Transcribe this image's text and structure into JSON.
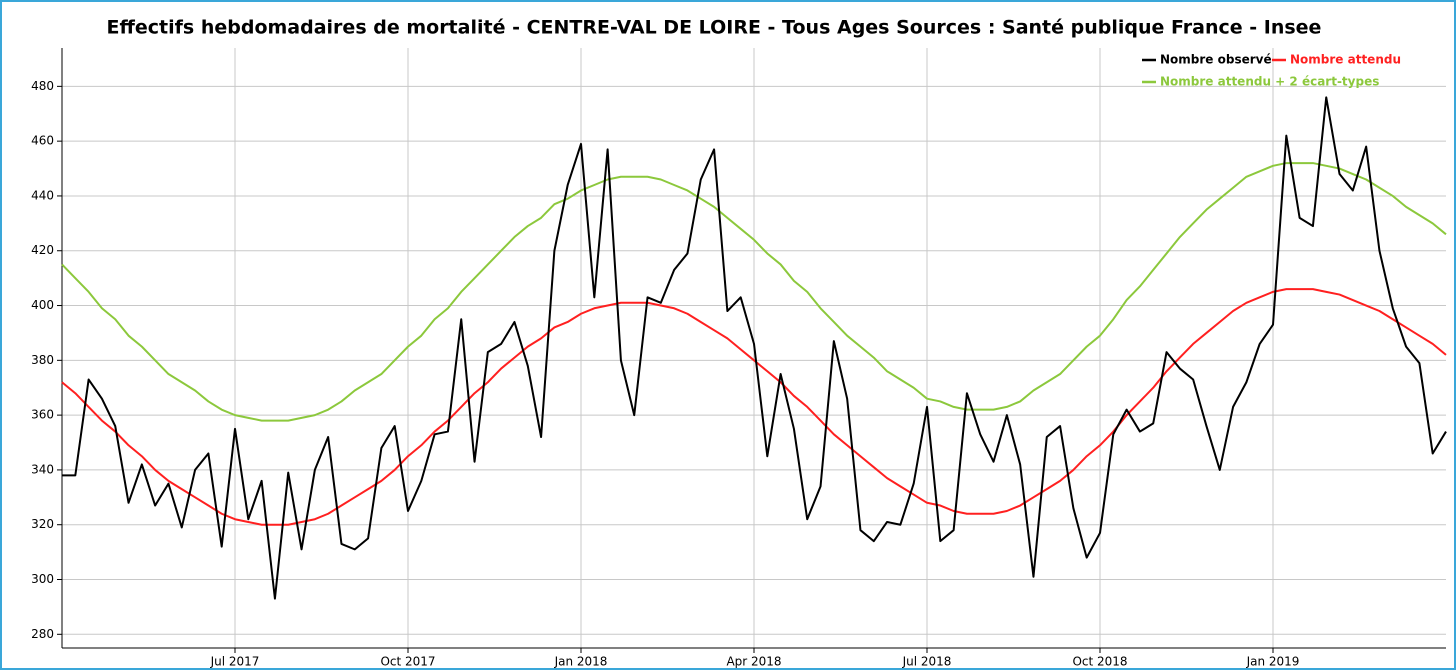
{
  "chart_data": {
    "type": "line",
    "title": "Effectifs hebdomadaires de mortalité - CENTRE-VAL DE LOIRE - Tous Ages Sources : Santé publique France - Insee",
    "categories": [
      null,
      null,
      null,
      null,
      null,
      null,
      null,
      null,
      null,
      null,
      null,
      null,
      null,
      "Jul 2017",
      null,
      null,
      null,
      null,
      null,
      null,
      null,
      null,
      null,
      null,
      null,
      null,
      "Oct 2017",
      null,
      null,
      null,
      null,
      null,
      null,
      null,
      null,
      null,
      null,
      null,
      null,
      "Jan 2018",
      null,
      null,
      null,
      null,
      null,
      null,
      null,
      null,
      null,
      null,
      null,
      null,
      "Apr 2018",
      null,
      null,
      null,
      null,
      null,
      null,
      null,
      null,
      null,
      null,
      null,
      null,
      "Jul 2018",
      null,
      null,
      null,
      null,
      null,
      null,
      null,
      null,
      null,
      null,
      null,
      null,
      "Oct 2018",
      null,
      null,
      null,
      null,
      null,
      null,
      null,
      null,
      null,
      null,
      null,
      null,
      "Jan 2019",
      null,
      null,
      null,
      null,
      null,
      null,
      null,
      null,
      null,
      null,
      null,
      null,
      null
    ],
    "series": [
      {
        "name": "Nombre observé",
        "color": "#000000",
        "values": [
          338,
          338,
          373,
          366,
          356,
          328,
          342,
          327,
          335,
          319,
          340,
          346,
          312,
          355,
          322,
          336,
          293,
          339,
          311,
          340,
          352,
          313,
          311,
          315,
          348,
          356,
          325,
          336,
          353,
          354,
          395,
          343,
          383,
          386,
          394,
          378,
          352,
          420,
          444,
          459,
          403,
          457,
          380,
          360,
          403,
          401,
          413,
          419,
          446,
          457,
          398,
          403,
          386,
          345,
          375,
          355,
          322,
          334,
          387,
          366,
          318,
          314,
          321,
          320,
          335,
          363,
          314,
          318,
          368,
          353,
          343,
          360,
          342,
          301,
          352,
          356,
          326,
          308,
          317,
          353,
          362,
          354,
          357,
          383,
          377,
          373,
          356,
          340,
          363,
          372,
          386,
          393,
          462,
          432,
          429,
          476,
          448,
          442,
          458,
          420,
          399,
          385,
          379,
          346,
          354
        ]
      },
      {
        "name": "Nombre attendu",
        "color": "#ff2020",
        "values": [
          372,
          368,
          363,
          358,
          354,
          349,
          345,
          340,
          336,
          333,
          330,
          327,
          324,
          322,
          321,
          320,
          320,
          320,
          321,
          322,
          324,
          327,
          330,
          333,
          336,
          340,
          345,
          349,
          354,
          358,
          363,
          368,
          372,
          377,
          381,
          385,
          388,
          392,
          394,
          397,
          399,
          400,
          401,
          401,
          401,
          400,
          399,
          397,
          394,
          391,
          388,
          384,
          380,
          376,
          372,
          367,
          363,
          358,
          353,
          349,
          345,
          341,
          337,
          334,
          331,
          328,
          327,
          325,
          324,
          324,
          324,
          325,
          327,
          330,
          333,
          336,
          340,
          345,
          349,
          354,
          360,
          365,
          370,
          376,
          381,
          386,
          390,
          394,
          398,
          401,
          403,
          405,
          406,
          406,
          406,
          405,
          404,
          402,
          400,
          398,
          395,
          392,
          389,
          386,
          382
        ]
      },
      {
        "name": "Nombre attendu + 2 écart-types",
        "color": "#8cc83c",
        "values": [
          415,
          410,
          405,
          399,
          395,
          389,
          385,
          380,
          375,
          372,
          369,
          365,
          362,
          360,
          359,
          358,
          358,
          358,
          359,
          360,
          362,
          365,
          369,
          372,
          375,
          380,
          385,
          389,
          395,
          399,
          405,
          410,
          415,
          420,
          425,
          429,
          432,
          437,
          439,
          442,
          444,
          446,
          447,
          447,
          447,
          446,
          444,
          442,
          439,
          436,
          432,
          428,
          424,
          419,
          415,
          409,
          405,
          399,
          394,
          389,
          385,
          381,
          376,
          373,
          370,
          366,
          365,
          363,
          362,
          362,
          362,
          363,
          365,
          369,
          372,
          375,
          380,
          385,
          389,
          395,
          402,
          407,
          413,
          419,
          425,
          430,
          435,
          439,
          443,
          447,
          449,
          451,
          452,
          452,
          452,
          451,
          450,
          448,
          446,
          443,
          440,
          436,
          433,
          430,
          426
        ]
      }
    ],
    "ylim": [
      275,
      494
    ],
    "yticks": [
      280,
      300,
      320,
      340,
      360,
      380,
      400,
      420,
      440,
      460,
      480
    ],
    "grid": true,
    "legend": "top-right"
  }
}
